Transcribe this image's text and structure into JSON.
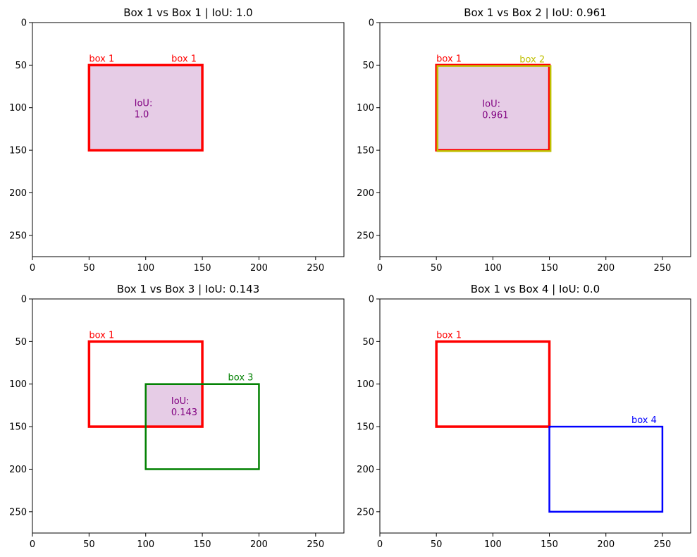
{
  "chart_data": [
    {
      "type": "box-overlay",
      "title": "Box 1 vs Box 1 | IoU: 1.0",
      "xlim": [
        0,
        275
      ],
      "ylim": [
        0,
        275
      ],
      "y_inverted": true,
      "xticks": [
        0,
        50,
        100,
        150,
        200,
        250
      ],
      "yticks": [
        0,
        50,
        100,
        150,
        200,
        250
      ],
      "boxes": [
        {
          "name": "box 1",
          "x1": 50,
          "y1": 50,
          "x2": 150,
          "y2": 150,
          "color": "#ff0000",
          "label_pos": "left"
        },
        {
          "name": "box 1",
          "x1": 50,
          "y1": 50,
          "x2": 150,
          "y2": 150,
          "color": "#ff0000",
          "label_pos": "right"
        }
      ],
      "intersection": {
        "x1": 50,
        "y1": 50,
        "x2": 150,
        "y2": 150,
        "color": "#800080",
        "iou_label": "IoU:",
        "iou_value": "1.0"
      }
    },
    {
      "type": "box-overlay",
      "title": "Box 1 vs Box 2 | IoU: 0.961",
      "xlim": [
        0,
        275
      ],
      "ylim": [
        0,
        275
      ],
      "y_inverted": true,
      "xticks": [
        0,
        50,
        100,
        150,
        200,
        250
      ],
      "yticks": [
        0,
        50,
        100,
        150,
        200,
        250
      ],
      "boxes": [
        {
          "name": "box 1",
          "x1": 50,
          "y1": 50,
          "x2": 150,
          "y2": 150,
          "color": "#ff0000",
          "label_pos": "left"
        },
        {
          "name": "box 2",
          "x1": 51,
          "y1": 51,
          "x2": 151,
          "y2": 151,
          "color": "#bfbf00",
          "label_pos": "right"
        }
      ],
      "intersection": {
        "x1": 51,
        "y1": 51,
        "x2": 150,
        "y2": 150,
        "color": "#800080",
        "iou_label": "IoU:",
        "iou_value": "0.961"
      }
    },
    {
      "type": "box-overlay",
      "title": "Box 1 vs Box 3 | IoU: 0.143",
      "xlim": [
        0,
        275
      ],
      "ylim": [
        0,
        275
      ],
      "y_inverted": true,
      "xticks": [
        0,
        50,
        100,
        150,
        200,
        250
      ],
      "yticks": [
        0,
        50,
        100,
        150,
        200,
        250
      ],
      "boxes": [
        {
          "name": "box 1",
          "x1": 50,
          "y1": 50,
          "x2": 150,
          "y2": 150,
          "color": "#ff0000",
          "label_pos": "left"
        },
        {
          "name": "box 3",
          "x1": 100,
          "y1": 100,
          "x2": 200,
          "y2": 200,
          "color": "#008000",
          "label_pos": "right"
        }
      ],
      "intersection": {
        "x1": 100,
        "y1": 100,
        "x2": 150,
        "y2": 150,
        "color": "#800080",
        "iou_label": "IoU:",
        "iou_value": "0.143"
      }
    },
    {
      "type": "box-overlay",
      "title": "Box 1 vs Box 4 | IoU: 0.0",
      "xlim": [
        0,
        275
      ],
      "ylim": [
        0,
        275
      ],
      "y_inverted": true,
      "xticks": [
        0,
        50,
        100,
        150,
        200,
        250
      ],
      "yticks": [
        0,
        50,
        100,
        150,
        200,
        250
      ],
      "boxes": [
        {
          "name": "box 1",
          "x1": 50,
          "y1": 50,
          "x2": 150,
          "y2": 150,
          "color": "#ff0000",
          "label_pos": "left"
        },
        {
          "name": "box 4",
          "x1": 150,
          "y1": 150,
          "x2": 250,
          "y2": 250,
          "color": "#0000ff",
          "label_pos": "right"
        }
      ],
      "intersection": null
    }
  ]
}
